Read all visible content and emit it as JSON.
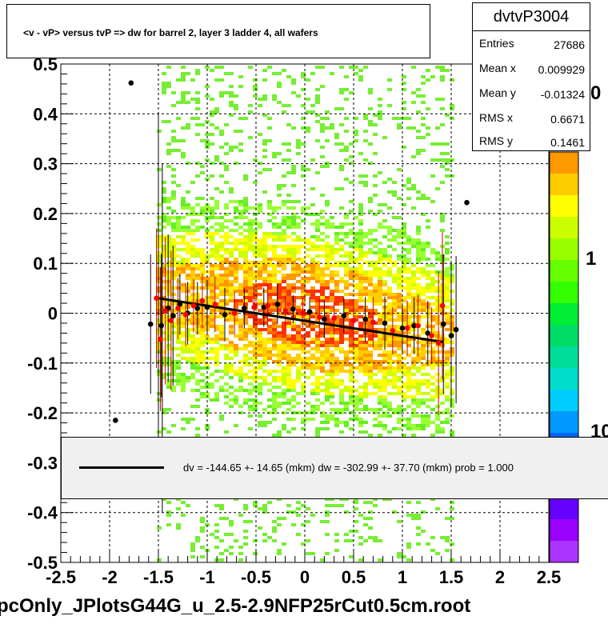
{
  "title": "<v - vP>       versus  tvP =>  dw for barrel 2, layer 3 ladder 4, all wafers",
  "footer": "pcOnly_JPlotsG44G_u_2.5-2.9NFP25rCut0.5cm.root",
  "stats": {
    "name": "dvtvP3004",
    "rows": [
      {
        "label": "Entries",
        "value": "27686"
      },
      {
        "label": "Mean x",
        "value": "0.009929"
      },
      {
        "label": "Mean y",
        "value": "-0.01324"
      },
      {
        "label": "RMS x",
        "value": "0.6671"
      },
      {
        "label": "RMS y",
        "value": "0.1461"
      }
    ]
  },
  "legend": {
    "text": "dv = -144.65 +- 14.65 (mkm) dw = -302.99 +- 37.70 (mkm) prob = 1.000"
  },
  "colors": {
    "fit_line": "#000000",
    "profile_red": "#ff0000",
    "profile_black": "#000000",
    "grid": "#000000"
  },
  "chart_data": {
    "type": "heatmap",
    "xlim": [
      -2.5,
      2.5
    ],
    "ylim": [
      -0.5,
      0.5
    ],
    "x_ticks": [
      "-2.5",
      "-2",
      "-1.5",
      "-1",
      "-0.5",
      "0",
      "0.5",
      "1",
      "1.5",
      "2",
      "2.5"
    ],
    "y_ticks": [
      "-0.5",
      "-0.4",
      "-0.3",
      "-0.2",
      "-0.1",
      "0",
      "0.1",
      "0.2",
      "0.3",
      "0.4",
      "0.5"
    ],
    "z_ticks": [
      "10",
      "1",
      "0"
    ],
    "grid": true,
    "fit_line": {
      "x": [
        -1.5,
        1.42
      ],
      "y": [
        0.03,
        -0.058
      ]
    },
    "profile_black": [
      {
        "x": -1.58,
        "y": -0.022
      },
      {
        "x": -1.47,
        "y": -0.025
      },
      {
        "x": -1.4,
        "y": 0.01
      },
      {
        "x": -1.35,
        "y": -0.005
      },
      {
        "x": -1.28,
        "y": 0.018
      },
      {
        "x": -1.2,
        "y": 0.0
      },
      {
        "x": -1.1,
        "y": 0.01
      },
      {
        "x": -1.0,
        "y": 0.012
      },
      {
        "x": -0.82,
        "y": -0.003
      },
      {
        "x": -0.62,
        "y": 0.01
      },
      {
        "x": -0.42,
        "y": 0.012
      },
      {
        "x": -0.28,
        "y": 0.018
      },
      {
        "x": -0.12,
        "y": 0.008
      },
      {
        "x": 0.05,
        "y": 0.003
      },
      {
        "x": 0.2,
        "y": -0.012
      },
      {
        "x": 0.4,
        "y": -0.005
      },
      {
        "x": 0.62,
        "y": -0.012
      },
      {
        "x": 0.82,
        "y": -0.02
      },
      {
        "x": 1.0,
        "y": -0.03
      },
      {
        "x": 1.12,
        "y": -0.025
      },
      {
        "x": 1.26,
        "y": -0.04
      },
      {
        "x": 1.42,
        "y": -0.022
      },
      {
        "x": 1.5,
        "y": -0.045
      },
      {
        "x": 1.55,
        "y": -0.033
      },
      {
        "x": -1.78,
        "y": 0.462
      },
      {
        "x": 1.66,
        "y": 0.222
      },
      {
        "x": -1.94,
        "y": -0.215
      }
    ],
    "profile_red": [
      {
        "x": -1.52,
        "y": 0.03
      },
      {
        "x": -1.48,
        "y": -0.052
      },
      {
        "x": -1.43,
        "y": 0.005
      },
      {
        "x": -1.37,
        "y": -0.015
      },
      {
        "x": -1.3,
        "y": 0.01
      },
      {
        "x": -1.22,
        "y": -0.003
      },
      {
        "x": -1.14,
        "y": 0.015
      },
      {
        "x": -1.05,
        "y": 0.025
      },
      {
        "x": -0.92,
        "y": 0.018
      },
      {
        "x": -0.72,
        "y": 0.0
      },
      {
        "x": -0.52,
        "y": 0.012
      },
      {
        "x": -0.38,
        "y": 0.015
      },
      {
        "x": -0.2,
        "y": 0.005
      },
      {
        "x": -0.02,
        "y": 0.0
      },
      {
        "x": 0.15,
        "y": -0.008
      },
      {
        "x": 0.3,
        "y": -0.01
      },
      {
        "x": 0.5,
        "y": -0.015
      },
      {
        "x": 0.7,
        "y": -0.018
      },
      {
        "x": 0.9,
        "y": -0.035
      },
      {
        "x": 1.05,
        "y": -0.03
      },
      {
        "x": 1.16,
        "y": -0.025
      },
      {
        "x": 1.3,
        "y": -0.045
      },
      {
        "x": 1.37,
        "y": -0.06
      },
      {
        "x": 1.41,
        "y": 0.015
      }
    ]
  }
}
